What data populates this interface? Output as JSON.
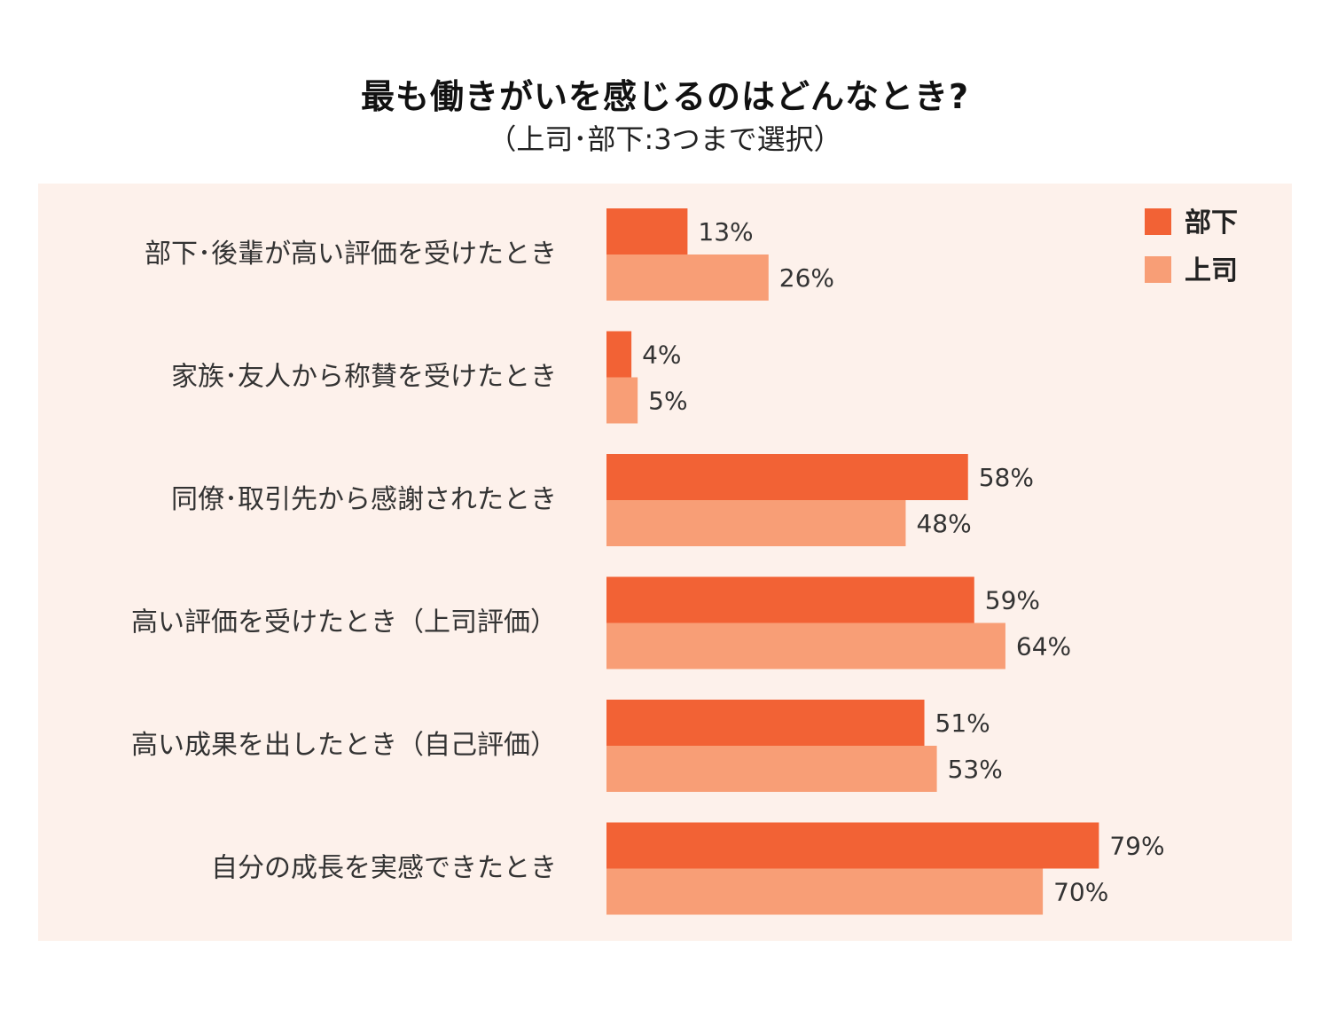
{
  "header": {
    "title": "最も働きがいを感じるのはどんなとき?",
    "subtitle": "（上司･部下:3つまで選択）"
  },
  "chart_data": {
    "type": "bar",
    "orientation": "horizontal",
    "title": "最も働きがいを感じるのはどんなとき?",
    "subtitle": "（上司･部下:3つまで選択）",
    "categories": [
      "部下･後輩が高い評価を受けたとき",
      "家族･友人から称賛を受けたとき",
      "同僚･取引先から感謝されたとき",
      "高い評価を受けたとき（上司評価）",
      "高い成果を出したとき（自己評価）",
      "自分の成長を実感できたとき"
    ],
    "series": [
      {
        "name": "部下",
        "color": "#f26235",
        "values": [
          13,
          4,
          58,
          59,
          51,
          79
        ]
      },
      {
        "name": "上司",
        "color": "#f89e76",
        "values": [
          26,
          5,
          48,
          64,
          53,
          70
        ]
      }
    ],
    "value_suffix": "%",
    "xlim": [
      0,
      100
    ],
    "grid": false,
    "legend_position": "top-right",
    "background_color": "#fdf1eb"
  }
}
